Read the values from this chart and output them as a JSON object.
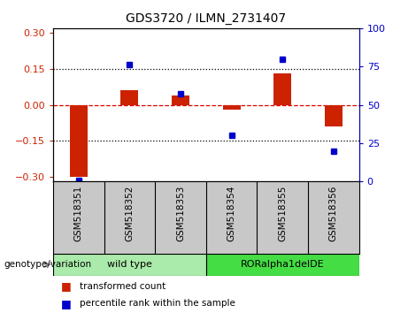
{
  "title": "GDS3720 / ILMN_2731407",
  "samples": [
    "GSM518351",
    "GSM518352",
    "GSM518353",
    "GSM518354",
    "GSM518355",
    "GSM518356"
  ],
  "red_values": [
    -0.3,
    0.06,
    0.04,
    -0.02,
    0.13,
    -0.09
  ],
  "blue_values": [
    1,
    76,
    57,
    30,
    80,
    20
  ],
  "ylim_left": [
    -0.32,
    0.32
  ],
  "ylim_right": [
    0,
    100
  ],
  "yticks_left": [
    -0.3,
    -0.15,
    0.0,
    0.15,
    0.3
  ],
  "yticks_right": [
    0,
    25,
    50,
    75,
    100
  ],
  "hlines_dotted": [
    -0.15,
    0.15
  ],
  "hline_dashed": 0.0,
  "genotype_groups": [
    {
      "label": "wild type",
      "samples": [
        0,
        1,
        2
      ],
      "color": "#AAEAAA"
    },
    {
      "label": "RORalpha1delDE",
      "samples": [
        3,
        4,
        5
      ],
      "color": "#44DD44"
    }
  ],
  "bar_color": "#CC2200",
  "dot_color": "#0000CC",
  "zero_line_color": "#DD0000",
  "background_color": "#FFFFFF",
  "tick_color_left": "#CC2200",
  "tick_color_right": "#0000CC",
  "bar_width": 0.35,
  "xtick_bg": "#C8C8C8",
  "legend_red_label": "transformed count",
  "legend_blue_label": "percentile rank within the sample",
  "geno_label": "genotype/variation"
}
